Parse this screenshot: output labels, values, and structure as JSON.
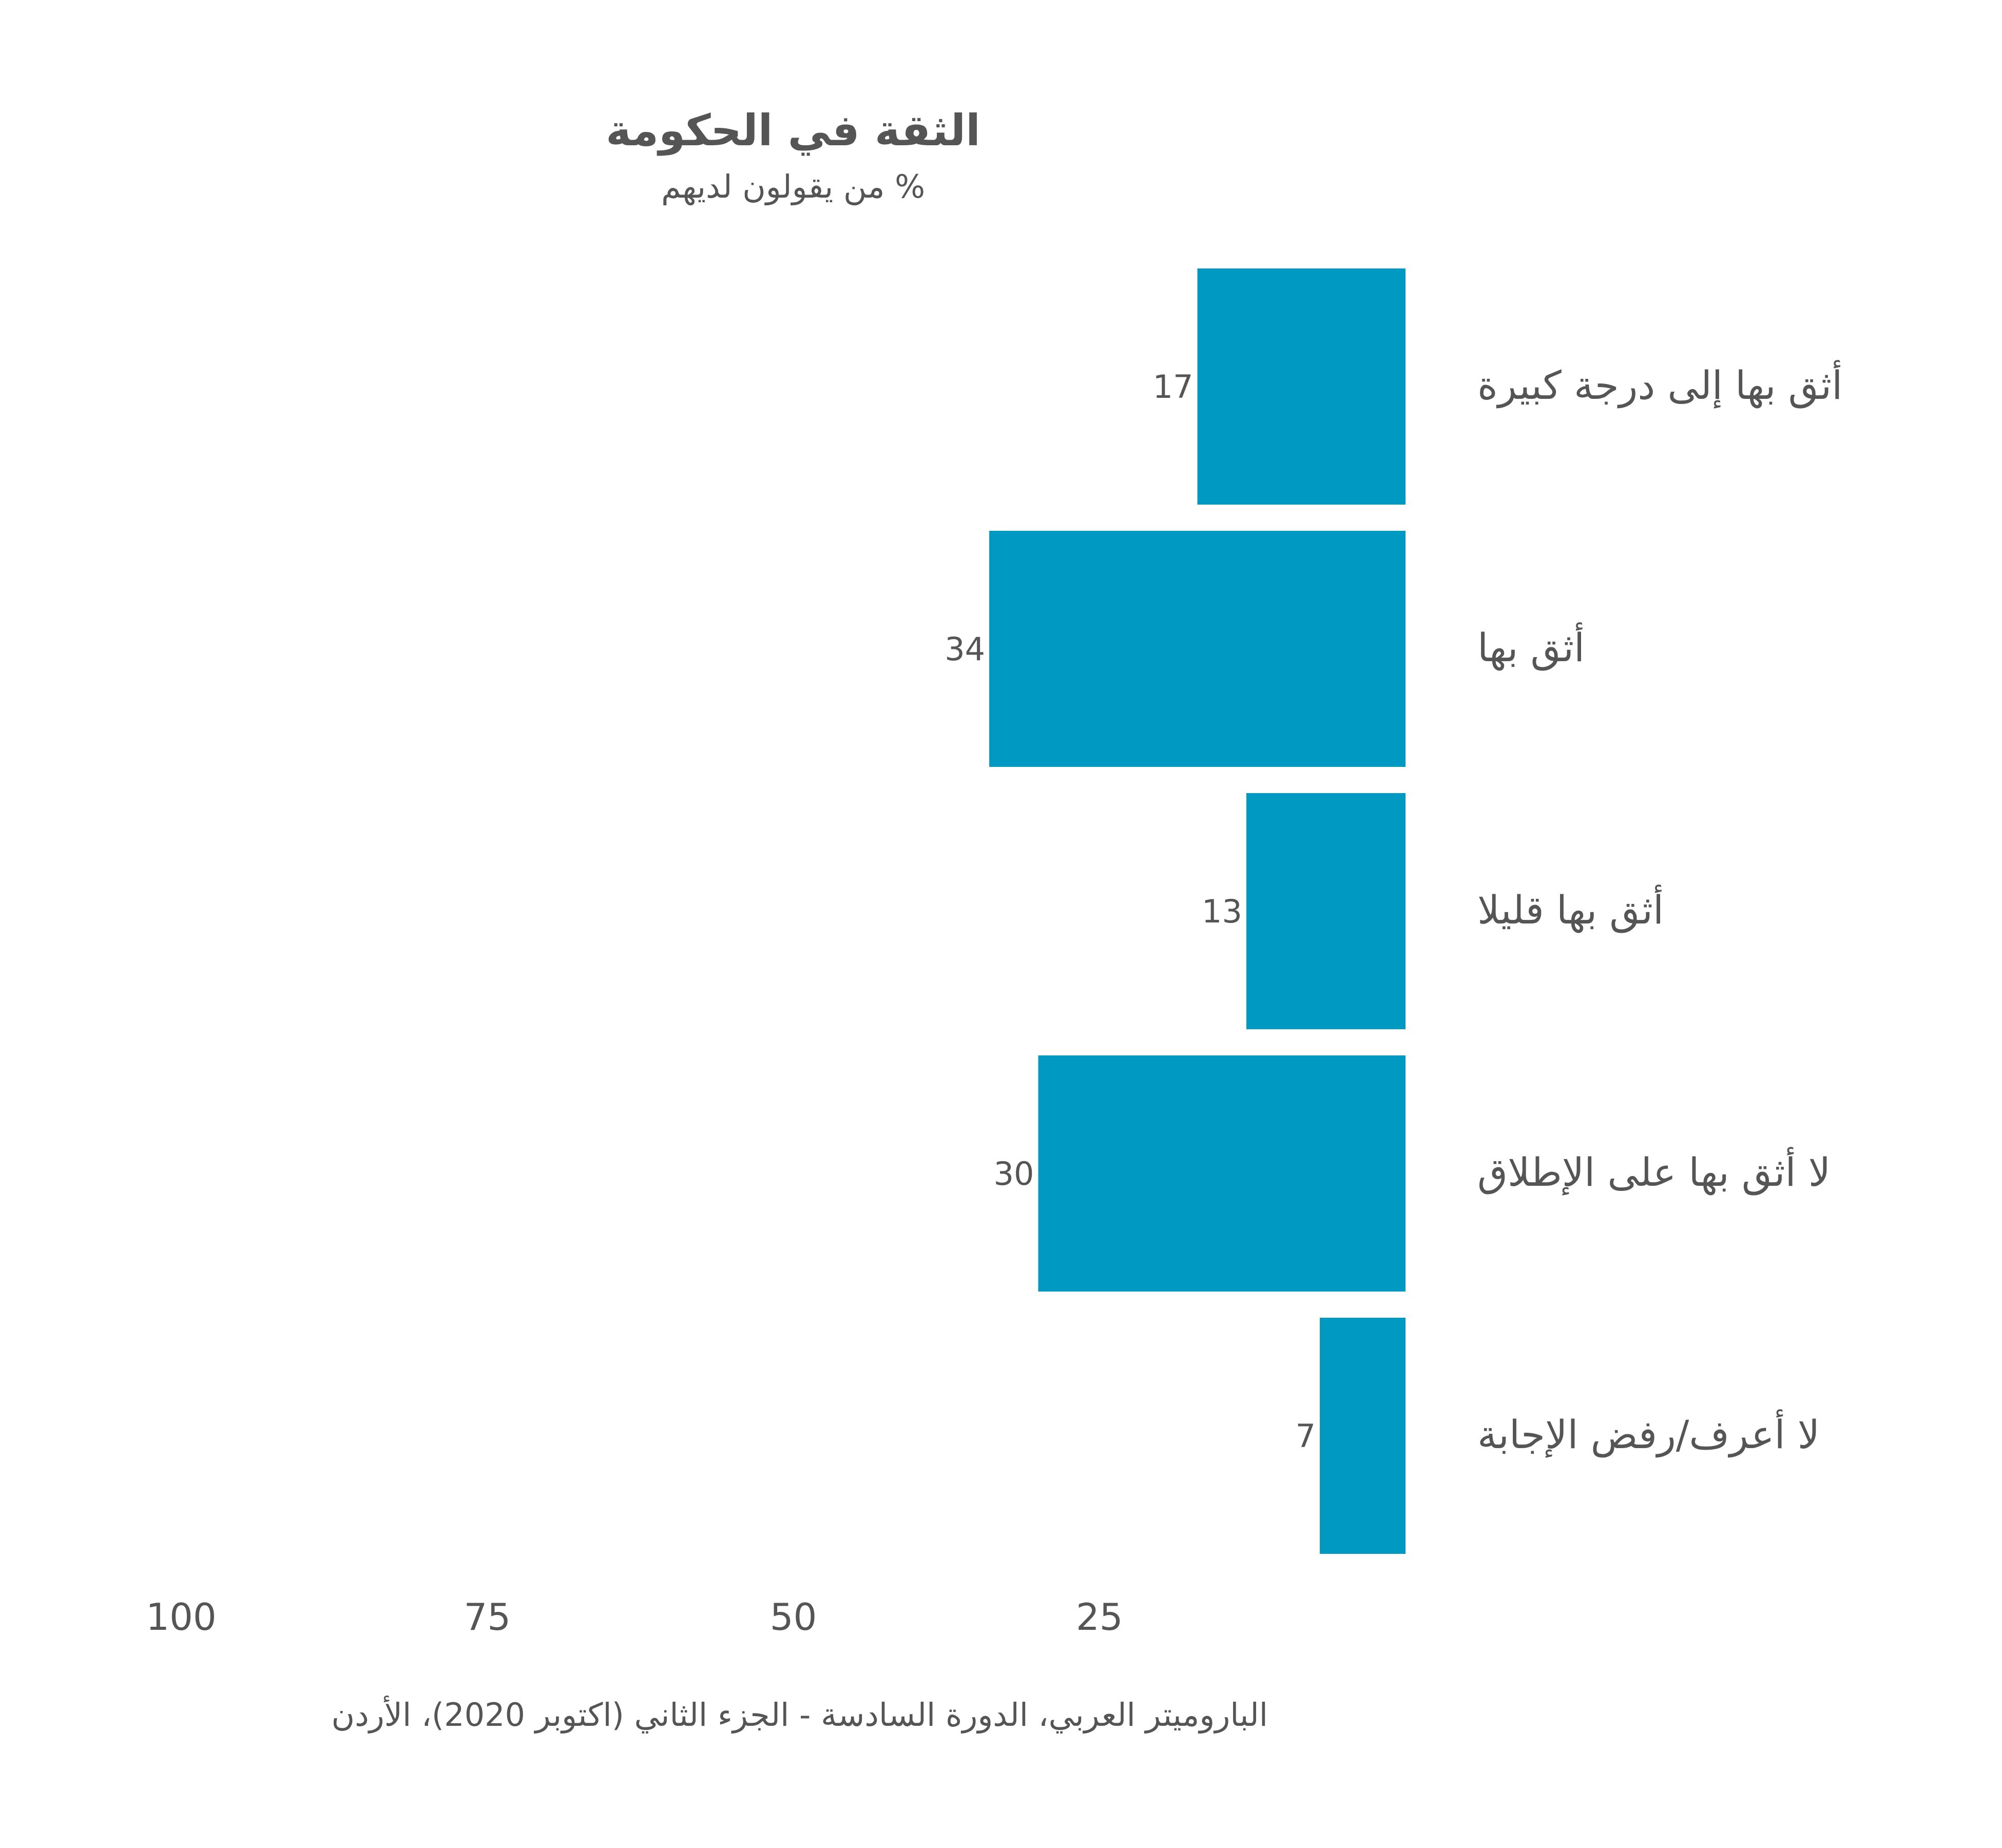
{
  "chart_data": {
    "type": "bar",
    "orientation": "horizontal",
    "direction": "right-to-left",
    "title": "الثقة في الحكومة",
    "subtitle": "% من يقولون لديهم",
    "categories": [
      "أثق بها إلى درجة كبيرة",
      "أثق بها",
      "أثق بها قليلا",
      "لا أثق بها على الإطلاق",
      "لا أعرف/رفض الإجابة"
    ],
    "values": [
      17,
      34,
      13,
      30,
      7
    ],
    "xlim": [
      0,
      100
    ],
    "ticks": [
      100,
      75,
      50,
      25
    ],
    "grid": false,
    "bar_color": "#0099c2",
    "text_color": "#555555",
    "source": "الباروميتر العربي، الدورة السادسة - الجزء الثاني (اكتوبر 2020)، الأردن"
  }
}
